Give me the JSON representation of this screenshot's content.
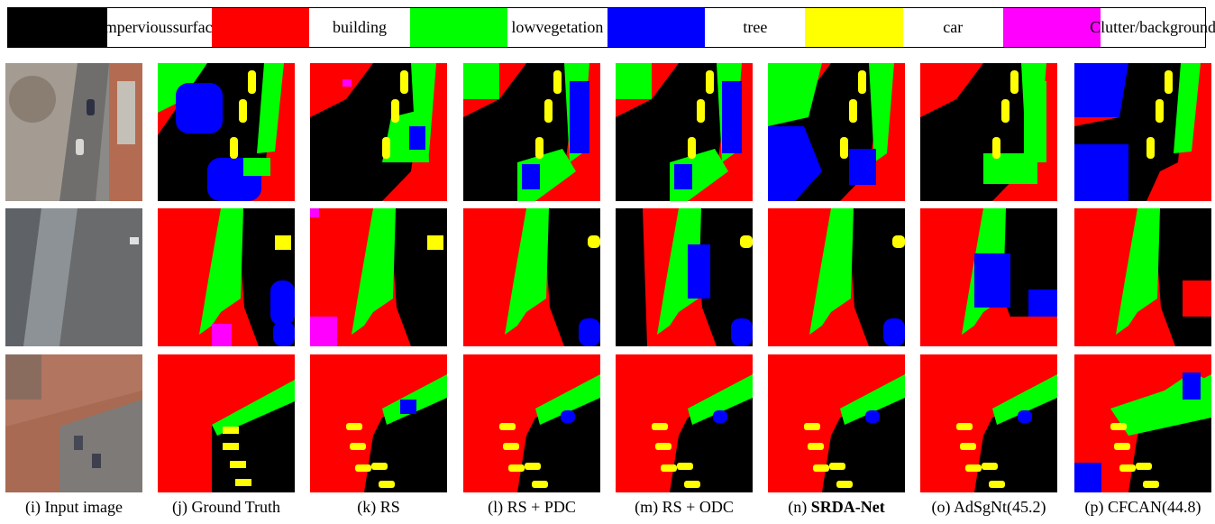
{
  "legend": [
    {
      "label_lines": [
        "impervious",
        "surface"
      ],
      "color": "#000000"
    },
    {
      "label_lines": [
        "building"
      ],
      "color": "#ff0000"
    },
    {
      "label_lines": [
        "low",
        "vegetation"
      ],
      "color": "#00ff00"
    },
    {
      "label_lines": [
        "tree"
      ],
      "color": "#0000ff"
    },
    {
      "label_lines": [
        "car"
      ],
      "color": "#ffff00"
    },
    {
      "label_lines": [
        "Clutter/",
        "background"
      ],
      "color": "#ff00ff"
    }
  ],
  "captions": [
    {
      "prefix": "(i)",
      "text": "Input image",
      "bold": false
    },
    {
      "prefix": "(j)",
      "text": "Ground Truth",
      "bold": false
    },
    {
      "prefix": "(k)",
      "text": "RS",
      "bold": false
    },
    {
      "prefix": "(l)",
      "text": "RS + PDC",
      "bold": false
    },
    {
      "prefix": "(m)",
      "text": "RS + ODC",
      "bold": false
    },
    {
      "prefix": "(n)",
      "text": "SRDA-Net",
      "bold": true
    },
    {
      "prefix": "(o)",
      "text": "AdSgNt(45.2)",
      "bold": false
    },
    {
      "prefix": "(p)",
      "text": "CFCAN(44.8)",
      "bold": false
    }
  ]
}
